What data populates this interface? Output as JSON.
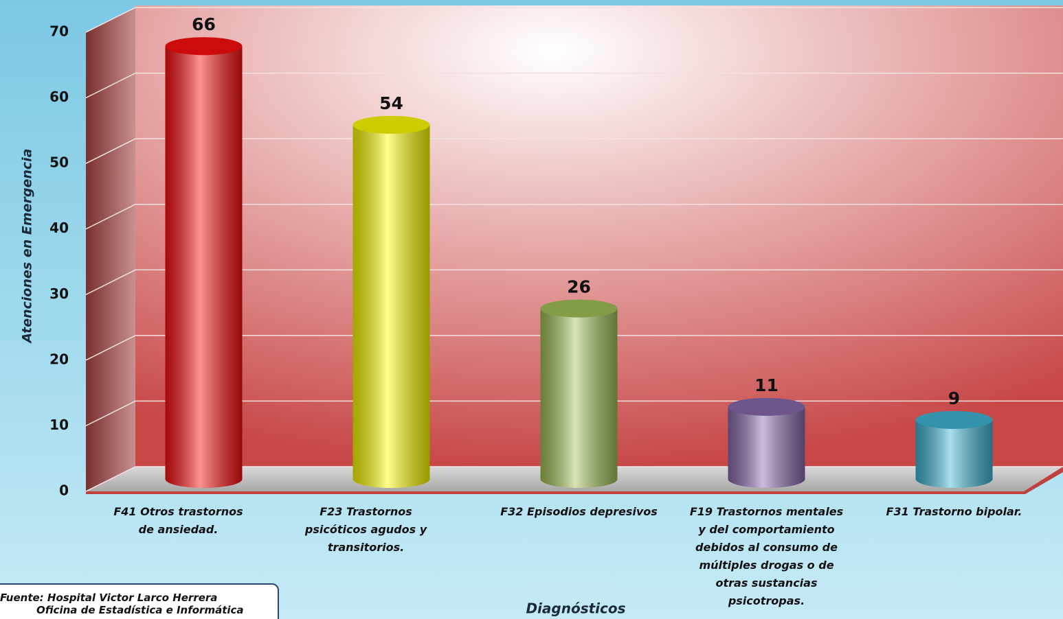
{
  "chart_data": {
    "type": "bar",
    "y_label": "Atenciones en Emergencia",
    "x_label": "Diagnósticos",
    "categories": [
      "F41 Otros trastornos de ansiedad.",
      "F23 Trastornos psicóticos agudos y transitorios.",
      "F32 Episodios depresivos",
      "F19 Trastornos mentales y del comportamiento debidos al consumo de múltiples drogas o de otras sustancias psicotropas.",
      "F31 Trastorno bipolar."
    ],
    "values": [
      66,
      54,
      26,
      11,
      9
    ],
    "colors": [
      "#ff1010",
      "#ffff00",
      "#a4c458",
      "#8a6cb0",
      "#40b8d8"
    ],
    "ylim": [
      0,
      70
    ],
    "yticks": [
      0,
      10,
      20,
      30,
      40,
      50,
      60,
      70
    ],
    "grid": true,
    "source": [
      "Fuente:  Hospital Victor Larco Herrera",
      "Oficina de Estadística e Informática"
    ]
  }
}
